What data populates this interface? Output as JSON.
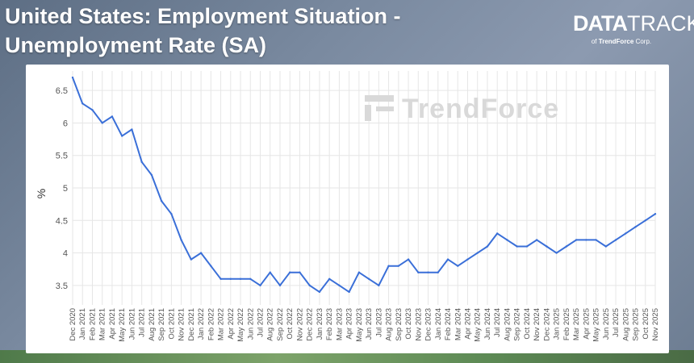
{
  "header": {
    "title_line1": "United States: Employment Situation -",
    "title_line2": "Unemployment Rate (SA)"
  },
  "logo": {
    "brand_bold": "DATA",
    "brand_light": "TRACK",
    "sub_prefix": "of",
    "sub_brand": "TrendForce",
    "sub_suffix": "Corp."
  },
  "watermark": "TrendForce",
  "colors": {
    "line": "#3a6fd8",
    "grid": "#e6e6e6"
  },
  "chart_data": {
    "type": "line",
    "ylabel": "%",
    "xlabel": "",
    "ylim": [
      3.2,
      6.8
    ],
    "yticks": [
      3.5,
      4,
      4.5,
      5,
      5.5,
      6,
      6.5
    ],
    "grid": true,
    "categories": [
      "Dec 2020",
      "Jan 2021",
      "Feb 2021",
      "Mar 2021",
      "Apr 2021",
      "May 2021",
      "Jun 2021",
      "Jul 2021",
      "Aug 2021",
      "Sep 2021",
      "Oct 2021",
      "Nov 2021",
      "Dec 2021",
      "Jan 2022",
      "Feb 2022",
      "Mar 2022",
      "Apr 2022",
      "May 2022",
      "Jun 2022",
      "Jul 2022",
      "Aug 2022",
      "Sep 2022",
      "Oct 2022",
      "Nov 2022",
      "Dec 2022",
      "Jan 2023",
      "Feb 2023",
      "Mar 2023",
      "Apr 2023",
      "May 2023",
      "Jun 2023",
      "Jul 2023",
      "Aug 2023",
      "Sep 2023",
      "Oct 2023",
      "Nov 2023",
      "Dec 2023",
      "Jan 2024",
      "Feb 2024",
      "Mar 2024",
      "Apr 2024",
      "May 2024",
      "Jun 2024",
      "Jul 2024",
      "Aug 2024",
      "Sep 2024",
      "Oct 2024",
      "Nov 2024",
      "Dec 2024",
      "Jan 2025",
      "Feb 2025",
      "Mar 2025",
      "Apr 2025",
      "May 2025",
      "Jun 2025",
      "Jul 2025",
      "Aug 2025",
      "Sep 2025",
      "Oct 2025",
      "Nov 2025"
    ],
    "values": [
      6.7,
      6.3,
      6.2,
      6.0,
      6.1,
      5.8,
      5.9,
      5.4,
      5.2,
      4.8,
      4.6,
      4.2,
      3.9,
      4.0,
      3.8,
      3.6,
      3.6,
      3.6,
      3.6,
      3.5,
      3.7,
      3.5,
      3.7,
      3.7,
      3.5,
      3.4,
      3.6,
      3.5,
      3.4,
      3.7,
      3.6,
      3.5,
      3.8,
      3.8,
      3.9,
      3.7,
      3.7,
      3.7,
      3.9,
      3.8,
      3.9,
      4.0,
      4.1,
      4.3,
      4.2,
      4.1,
      4.1,
      4.2,
      4.1,
      4.0,
      4.1,
      4.2,
      4.2,
      4.2,
      4.1,
      4.2,
      4.3,
      4.4,
      4.5,
      4.6
    ]
  }
}
